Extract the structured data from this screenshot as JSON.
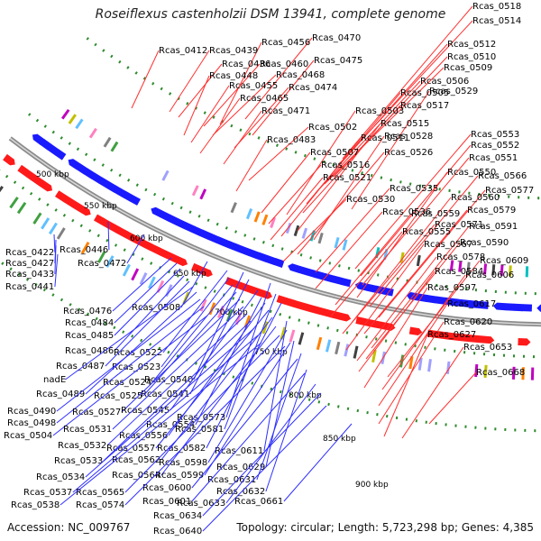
{
  "title": "Roseiflexus castenholzii DSM 13941, complete genome",
  "footer": {
    "accession": "Accession: NC_009767",
    "topology": "Topology: circular; Length: 5,723,298 bp; Genes: 4,385"
  },
  "scale_labels": [
    "500 kbp",
    "550 kbp",
    "600 kbp",
    "650 kbp",
    "700 kbp",
    "750 kbp",
    "800 kbp",
    "850 kbp",
    "900 kbp"
  ],
  "labels_red": [
    "Rcas_0518",
    "Rcas_0514",
    "Rcas_0470",
    "Rcas_0512",
    "Rcas_0456",
    "Rcas_0412",
    "Rcas_0439",
    "Rcas_0510",
    "Rcas_0475",
    "Rcas_0509",
    "Rcas_0436",
    "Rcas_0460",
    "Rcas_0468",
    "Rcas_0506",
    "Rcas_0448",
    "Rcas_0529",
    "Rcas_0455",
    "Rcas_0474",
    "Rcas_0505",
    "Rcas_0517",
    "Rcas_0465",
    "Rcas_0503",
    "Rcas_0471",
    "Rcas_0515",
    "Rcas_0502",
    "Rcas_0528",
    "Rcas_0483",
    "Rcas_0511",
    "Rcas_0553",
    "Rcas_0507",
    "Rcas_0552",
    "Rcas_0526",
    "Rcas_0551",
    "Rcas_0516",
    "Rcas_0550",
    "Rcas_0566",
    "Rcas_0521",
    "Rcas_0535",
    "Rcas_0577",
    "Rcas_0560",
    "Rcas_0530",
    "Rcas_0579",
    "Rcas_0559",
    "Rcas_0536",
    "Rcas_0591",
    "Rcas_0571",
    "Rcas_0555",
    "Rcas_0590",
    "Rcas_0567",
    "Rcas_0609",
    "Rcas_0578",
    "Rcas_0584",
    "Rcas_0606",
    "Rcas_0597",
    "Rcas_0617",
    "Rcas_0620",
    "Rcas_0627",
    "Rcas_0653",
    "Rcas_0668"
  ],
  "labels_blue": [
    "Rcas_0422",
    "Rcas_0446",
    "Rcas_0427",
    "Rcas_0472",
    "Rcas_0433",
    "Rcas_0441",
    "Rcas_0476",
    "Rcas_0508",
    "Rcas_0484",
    "Rcas_0485",
    "Rcas_0486",
    "Rcas_0522",
    "Rcas_0487",
    "nadE",
    "Rcas_0523",
    "Rcas_0540",
    "Rcas_0489",
    "Rcas_0524",
    "Rcas_0541",
    "Rcas_0490",
    "Rcas_0525",
    "Rcas_0498",
    "Rcas_0527",
    "Rcas_0545",
    "Rcas_0573",
    "Rcas_0554",
    "Rcas_0504",
    "Rcas_0531",
    "Rcas_0556",
    "Rcas_0581",
    "Rcas_0532",
    "Rcas_0557",
    "Rcas_0582",
    "Rcas_0611",
    "Rcas_0533",
    "Rcas_0562",
    "Rcas_0598",
    "Rcas_0629",
    "Rcas_0534",
    "Rcas_0564",
    "Rcas_0599",
    "Rcas_0631",
    "Rcas_0537",
    "Rcas_0565",
    "Rcas_0600",
    "Rcas_0632",
    "Rcas_0538",
    "Rcas_0574",
    "Rcas_0601",
    "Rcas_0633",
    "Rcas_0661",
    "Rcas_0634",
    "Rcas_0640"
  ],
  "colors": {
    "forward_strand": "#ff1a1a",
    "reverse_strand": "#1a1aff",
    "backbone": "#8c8c8c",
    "dotted_ring": "#2e8b2e",
    "label_line_red": "#ff3030",
    "label_line_blue": "#2f2fff",
    "feature_palette": [
      "#00c0c0",
      "#c0c000",
      "#c000c0",
      "#808080",
      "#40a040",
      "#ff8000",
      "#a0a0ff",
      "#404040",
      "#ff80c0",
      "#60c0ff"
    ]
  }
}
